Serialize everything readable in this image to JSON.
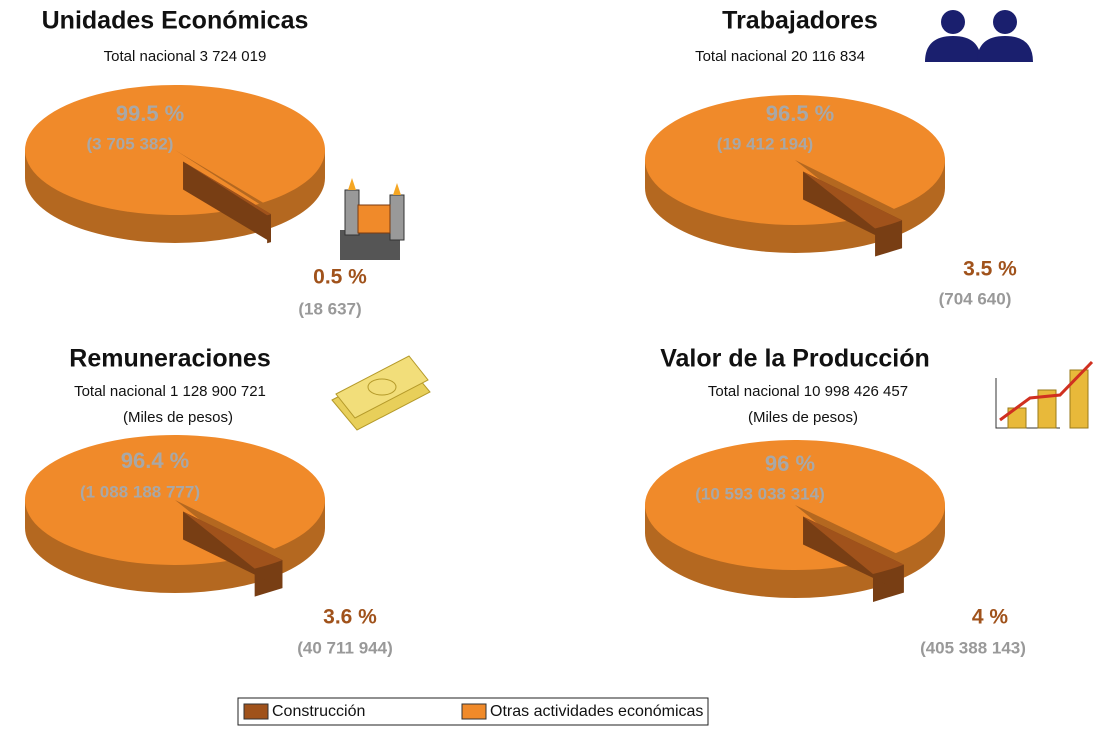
{
  "chart_data": [
    {
      "type": "pie",
      "title": "Unidades Económicas",
      "subtitle": "Total nacional 3 724 019",
      "values": [
        0.5,
        99.5
      ],
      "value_labels": [
        "0.5 %",
        "99.5 %"
      ],
      "count_labels": [
        "(18 637)",
        "(3 705 382)"
      ]
    },
    {
      "type": "pie",
      "title": "Trabajadores",
      "subtitle": "Total nacional 20 116 834",
      "values": [
        3.5,
        96.5
      ],
      "value_labels": [
        "3.5 %",
        "96.5 %"
      ],
      "count_labels": [
        "(704 640)",
        "(19 412 194)"
      ]
    },
    {
      "type": "pie",
      "title": "Remuneraciones",
      "subtitle": "Total nacional 1 128 900 721",
      "note": "(Miles de pesos)",
      "values": [
        3.6,
        96.4
      ],
      "value_labels": [
        "3.6 %",
        "96.4 %"
      ],
      "count_labels": [
        "(40 711 944)",
        "(1 088 188 777)"
      ]
    },
    {
      "type": "pie",
      "title": "Valor de la Producción",
      "subtitle": "Total nacional 10 998 426 457",
      "note": "(Miles de pesos)",
      "values": [
        4,
        96
      ],
      "value_labels": [
        "4 %",
        "96 %"
      ],
      "count_labels": [
        "(405 388 143)",
        "(10 593 038 314)"
      ]
    }
  ],
  "legend": {
    "items": [
      {
        "name": "Construcción",
        "color": "#a0521b"
      },
      {
        "name": "Otras actividades económicas",
        "color": "#f08a2a"
      }
    ]
  }
}
